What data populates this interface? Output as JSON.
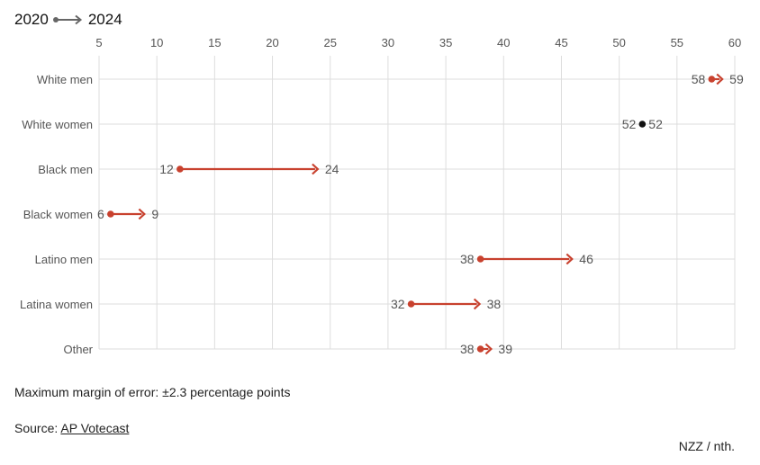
{
  "legend": {
    "from_label": "2020",
    "to_label": "2024"
  },
  "chart_data": {
    "type": "dumbbell-arrow",
    "x_ticks": [
      5,
      10,
      15,
      20,
      25,
      30,
      35,
      40,
      45,
      50,
      55,
      60
    ],
    "xlim": [
      5,
      60
    ],
    "grid": true,
    "categories": [
      "White men",
      "White women",
      "Black men",
      "Black women",
      "Latino men",
      "Latina women",
      "Other"
    ],
    "series": [
      {
        "name": "2020",
        "values": [
          58,
          52,
          12,
          6,
          38,
          32,
          38
        ]
      },
      {
        "name": "2024",
        "values": [
          59,
          52,
          24,
          9,
          46,
          38,
          39
        ]
      }
    ],
    "colors": {
      "increase": "#c8412e",
      "decrease": "#2e3d78",
      "unchanged": "#111111",
      "grid": "#dddddd",
      "label": "#555555"
    }
  },
  "footer": {
    "margin_note": "Maximum margin of error: ±2.3 percentage points",
    "source_prefix": "Source: ",
    "source_name": "AP Votecast",
    "credit": "NZZ / nth."
  }
}
